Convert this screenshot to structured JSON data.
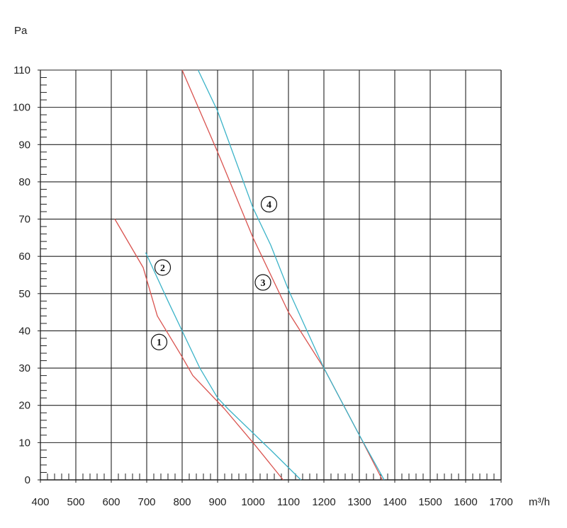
{
  "chart_data": {
    "type": "line",
    "ylabel": "Pa",
    "xlabel": "m³/h",
    "xlim": [
      400,
      1700
    ],
    "ylim": [
      0,
      110
    ],
    "x_ticks": [
      400,
      500,
      600,
      700,
      800,
      900,
      1000,
      1100,
      1200,
      1300,
      1400,
      1500,
      1600,
      1700
    ],
    "y_ticks": [
      0,
      10,
      20,
      30,
      40,
      50,
      60,
      70,
      80,
      90,
      100,
      110
    ],
    "x_tick_labels": [
      "400",
      "500",
      "600",
      "700",
      "800",
      "900",
      "1000",
      "1100",
      "1200",
      "1300",
      "1400",
      "1500",
      "1600",
      "1700"
    ],
    "y_tick_labels": [
      "0",
      "10",
      "20",
      "30",
      "40",
      "50",
      "60",
      "70",
      "80",
      "90",
      "100",
      "110"
    ],
    "grid": true,
    "series": [
      {
        "marker": "1",
        "color": "#d9534f",
        "x": [
          610,
          690,
          730,
          800,
          830,
          920,
          1000,
          1085
        ],
        "y": [
          70,
          57,
          44,
          33,
          28,
          19,
          10,
          0
        ],
        "label_at": [
          735,
          37
        ]
      },
      {
        "marker": "2",
        "color": "#3bb3c8",
        "x": [
          697,
          760,
          800,
          850,
          900,
          930,
          1050,
          1135
        ],
        "y": [
          61,
          48,
          40,
          30,
          22,
          19,
          8,
          0
        ],
        "label_at": [
          745,
          57
        ]
      },
      {
        "marker": "3",
        "color": "#d9534f",
        "x": [
          800,
          900,
          1000,
          1100,
          1200,
          1300,
          1365
        ],
        "y": [
          110,
          88,
          65,
          45,
          30,
          12,
          0
        ],
        "label_at": [
          1028,
          53
        ]
      },
      {
        "marker": "4",
        "color": "#3bb3c8",
        "x": [
          845,
          900,
          1000,
          1050,
          1100,
          1200,
          1300,
          1370
        ],
        "y": [
          110,
          99,
          73,
          63,
          51,
          30,
          12,
          0
        ],
        "label_at": [
          1045,
          74
        ]
      }
    ]
  }
}
